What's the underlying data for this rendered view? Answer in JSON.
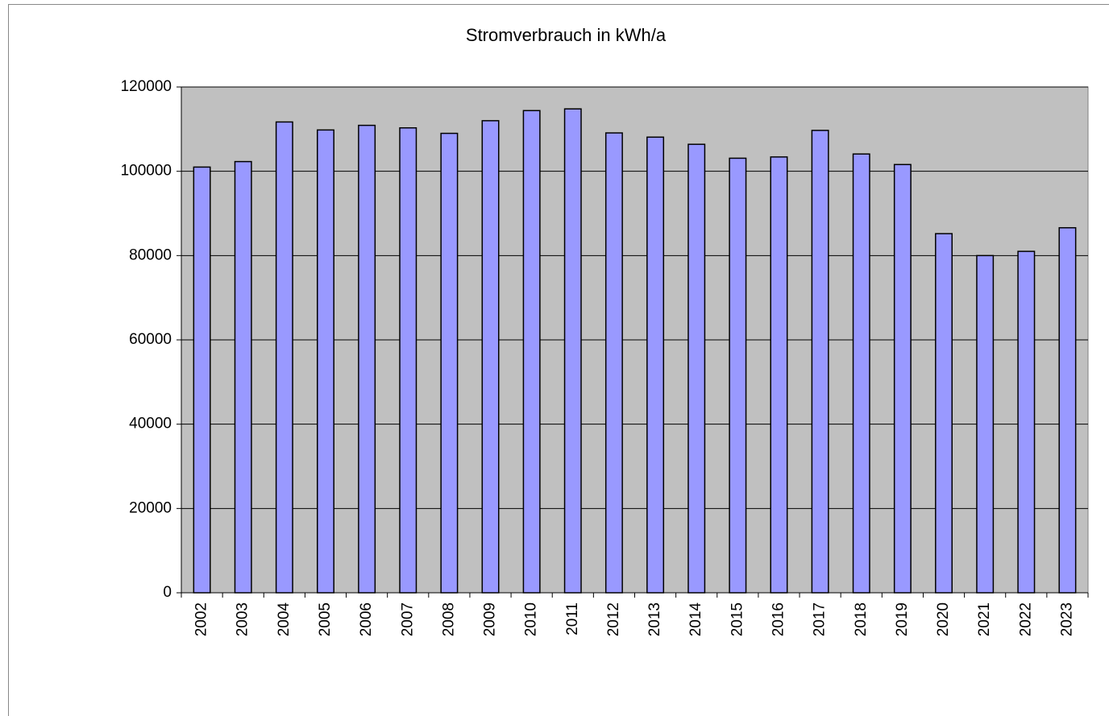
{
  "chart_data": {
    "type": "bar",
    "title": "Stromverbrauch in kWh/a",
    "categories": [
      "2002",
      "2003",
      "2004",
      "2005",
      "2006",
      "2007",
      "2008",
      "2009",
      "2010",
      "2011",
      "2012",
      "2013",
      "2014",
      "2015",
      "2016",
      "2017",
      "2018",
      "2019",
      "2020",
      "2021",
      "2022",
      "2023"
    ],
    "values": [
      101000,
      102300,
      111700,
      109800,
      110900,
      110300,
      109000,
      112000,
      114400,
      114800,
      109100,
      108100,
      106400,
      103100,
      103400,
      109700,
      104100,
      101600,
      85200,
      80000,
      81000,
      86600
    ],
    "color": "#9999ff",
    "ylim": [
      0,
      120000
    ],
    "yticks": [
      0,
      20000,
      40000,
      60000,
      80000,
      100000,
      120000
    ],
    "grid": true
  }
}
